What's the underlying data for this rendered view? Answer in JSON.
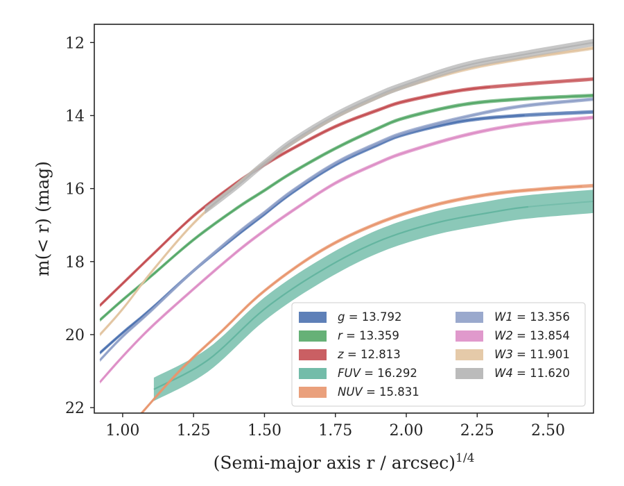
{
  "chart_data": {
    "type": "line",
    "xlabel": "(Semi-major axis r / arcsec)",
    "xlabel_exp": "1/4",
    "ylabel": "m(< r) (mag)",
    "xlim": [
      0.9,
      2.66
    ],
    "ylim": [
      22.15,
      11.5
    ],
    "y_inverted": true,
    "x_ticks": [
      "1.00",
      "1.25",
      "1.50",
      "1.75",
      "2.00",
      "2.25",
      "2.50"
    ],
    "x_tick_values": [
      1.0,
      1.25,
      1.5,
      1.75,
      2.0,
      2.25,
      2.5
    ],
    "y_ticks": [
      "12",
      "14",
      "16",
      "18",
      "20",
      "22"
    ],
    "y_tick_values": [
      12,
      14,
      16,
      18,
      20,
      22
    ],
    "grid": false,
    "legend_placement": "lower-right",
    "series": [
      {
        "name": "g",
        "value": "13.792",
        "color": "#4c72b0",
        "x": [
          0.92,
          1.0,
          1.1,
          1.25,
          1.4,
          1.5,
          1.6,
          1.75,
          1.9,
          2.0,
          2.2,
          2.4,
          2.66
        ],
        "y": [
          20.5,
          19.95,
          19.3,
          18.25,
          17.3,
          16.7,
          16.1,
          15.35,
          14.8,
          14.5,
          14.15,
          14.0,
          13.9
        ],
        "solid_to": 2.43,
        "band": 0.05
      },
      {
        "name": "r",
        "value": "13.359",
        "color": "#55a868",
        "x": [
          0.92,
          1.0,
          1.1,
          1.25,
          1.4,
          1.5,
          1.6,
          1.75,
          1.9,
          2.0,
          2.2,
          2.4,
          2.66
        ],
        "y": [
          19.6,
          19.05,
          18.4,
          17.4,
          16.55,
          16.05,
          15.55,
          14.9,
          14.35,
          14.05,
          13.7,
          13.55,
          13.45
        ],
        "solid_to": 2.66,
        "band": 0.05
      },
      {
        "name": "z",
        "value": "12.813",
        "color": "#c44e52",
        "x": [
          0.92,
          1.0,
          1.1,
          1.25,
          1.4,
          1.5,
          1.6,
          1.75,
          1.9,
          2.0,
          2.2,
          2.4,
          2.66
        ],
        "y": [
          19.2,
          18.6,
          17.85,
          16.75,
          15.85,
          15.35,
          14.9,
          14.3,
          13.85,
          13.6,
          13.3,
          13.15,
          13.0
        ],
        "solid_to": 2.3,
        "band": 0.05
      },
      {
        "name": "FUV",
        "value": "16.292",
        "color": "#64b5a0",
        "x": [
          1.11,
          1.3,
          1.5,
          1.7,
          1.9,
          2.1,
          2.3,
          2.43,
          2.66
        ],
        "y": [
          21.5,
          20.7,
          19.3,
          18.25,
          17.45,
          16.95,
          16.65,
          16.5,
          16.35
        ],
        "solid_to": 2.43,
        "band": 0.32
      },
      {
        "name": "NUV",
        "value": "15.831",
        "color": "#e8966e",
        "x": [
          1.05,
          1.2,
          1.35,
          1.5,
          1.7,
          1.9,
          2.1,
          2.3,
          2.5,
          2.66
        ],
        "y": [
          22.3,
          21.0,
          19.9,
          18.8,
          17.7,
          16.95,
          16.45,
          16.15,
          16.0,
          15.92
        ],
        "solid_to": 2.62,
        "band": 0.05
      },
      {
        "name": "W1",
        "value": "13.356",
        "color": "#8fa0c8",
        "x": [
          0.92,
          1.0,
          1.1,
          1.25,
          1.4,
          1.5,
          1.6,
          1.75,
          1.9,
          2.0,
          2.2,
          2.4,
          2.66
        ],
        "y": [
          20.7,
          20.05,
          19.35,
          18.25,
          17.25,
          16.65,
          16.05,
          15.3,
          14.75,
          14.45,
          14.05,
          13.75,
          13.55
        ],
        "solid_to": 2.66,
        "band": 0.05
      },
      {
        "name": "W2",
        "value": "13.854",
        "color": "#dd8ec6",
        "x": [
          0.92,
          1.0,
          1.1,
          1.25,
          1.4,
          1.5,
          1.6,
          1.75,
          1.9,
          2.0,
          2.2,
          2.4,
          2.66
        ],
        "y": [
          21.3,
          20.6,
          19.8,
          18.75,
          17.75,
          17.15,
          16.6,
          15.85,
          15.3,
          15.0,
          14.55,
          14.25,
          14.05
        ],
        "solid_to": 2.66,
        "band": 0.05
      },
      {
        "name": "W3",
        "value": "11.901",
        "color": "#e2c4a0",
        "x": [
          0.92,
          1.0,
          1.1,
          1.25,
          1.4,
          1.5,
          1.6,
          1.75,
          1.9,
          2.0,
          2.2,
          2.4,
          2.66
        ],
        "y": [
          20.0,
          19.3,
          18.3,
          16.95,
          15.9,
          15.3,
          14.75,
          14.05,
          13.5,
          13.2,
          12.75,
          12.45,
          12.15
        ],
        "solid_to": 2.66,
        "band": 0.05
      },
      {
        "name": "W4",
        "value": "11.620",
        "color": "#b4b4b4",
        "x": [
          1.29,
          1.4,
          1.5,
          1.6,
          1.75,
          1.9,
          2.0,
          2.2,
          2.4,
          2.66
        ],
        "y": [
          16.6,
          15.95,
          15.3,
          14.7,
          14.0,
          13.45,
          13.15,
          12.65,
          12.35,
          12.0
        ],
        "solid_to": 2.66,
        "band": 0.1
      }
    ]
  }
}
